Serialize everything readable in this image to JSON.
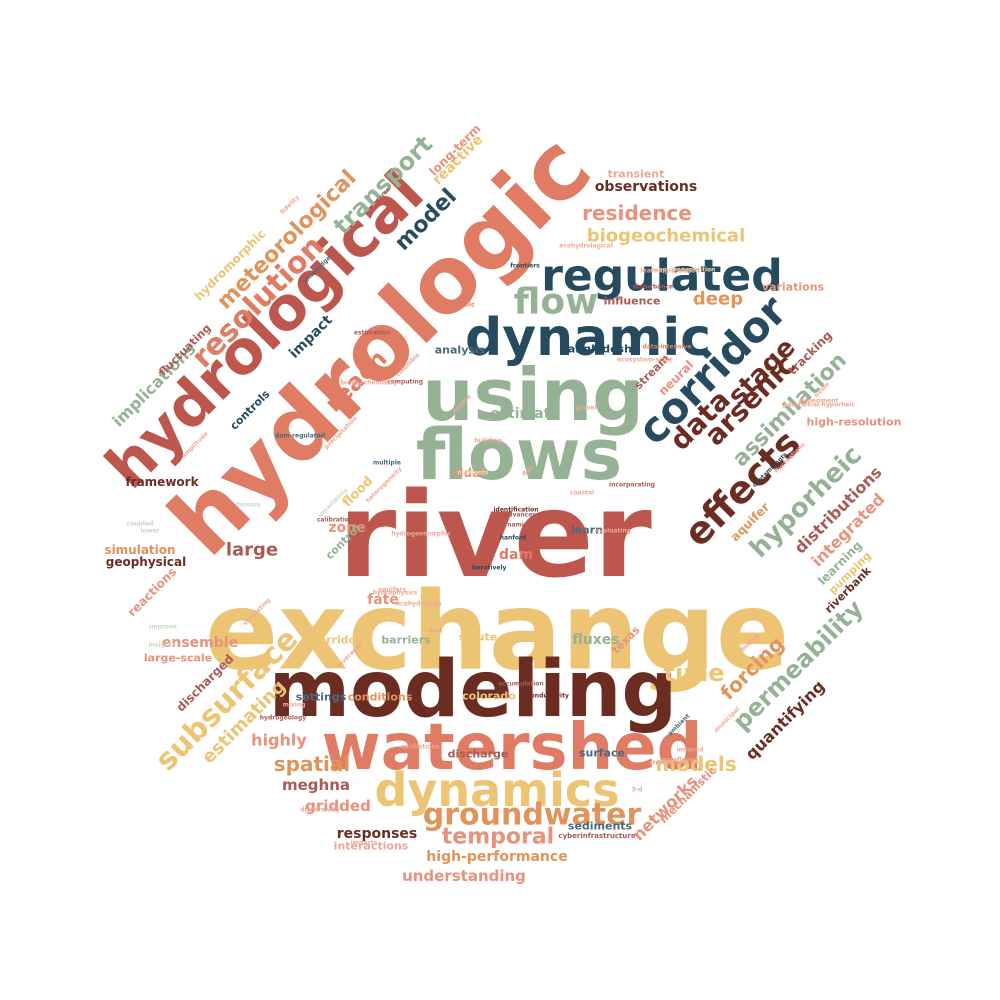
{
  "palette": {
    "dark_red": "#bd574d",
    "coral": "#e07b64",
    "gold": "#ecc473",
    "brown": "#6b2d22",
    "navy": "#264b5e",
    "sage": "#95b394",
    "orange": "#e0945a",
    "salmon": "#e8927c",
    "mauve": "#a85a55",
    "slate": "#4a6a7d",
    "light_coral": "#eda894",
    "light_sage": "#c9d6c6",
    "light_gold": "#f3dfb3"
  },
  "words": [
    {
      "text": "river"
    },
    {
      "text": "exchange"
    },
    {
      "text": "hydrologic"
    },
    {
      "text": "modeling"
    },
    {
      "text": "watershed"
    },
    {
      "text": "flows"
    },
    {
      "text": "using"
    },
    {
      "text": "hydrological"
    },
    {
      "text": "dynamic"
    },
    {
      "text": "dynamics"
    },
    {
      "text": "regulated"
    },
    {
      "text": "corridor"
    },
    {
      "text": "effects"
    },
    {
      "text": "groundwater"
    },
    {
      "text": "flow"
    },
    {
      "text": "subsurface"
    },
    {
      "text": "resolution"
    },
    {
      "text": "data"
    },
    {
      "text": "arsenic"
    },
    {
      "text": "stage"
    },
    {
      "text": "hyporheic"
    },
    {
      "text": "permeability"
    },
    {
      "text": "assimilation"
    },
    {
      "text": "temporal"
    },
    {
      "text": "meteorological"
    },
    {
      "text": "transport"
    },
    {
      "text": "reach"
    },
    {
      "text": "model"
    },
    {
      "text": "time"
    },
    {
      "text": "models"
    },
    {
      "text": "residence"
    },
    {
      "text": "biogeochemical"
    },
    {
      "text": "spatial"
    },
    {
      "text": "forcing"
    },
    {
      "text": "implications"
    },
    {
      "text": "observations"
    },
    {
      "text": "deep"
    },
    {
      "text": "estimating"
    },
    {
      "text": "quantifying"
    },
    {
      "text": "large"
    },
    {
      "text": "distributions"
    },
    {
      "text": "integrated"
    },
    {
      "text": "estimate"
    },
    {
      "text": "highly"
    },
    {
      "text": "networks"
    },
    {
      "text": "hydromorphic"
    },
    {
      "text": "meghna"
    },
    {
      "text": "responses"
    },
    {
      "text": "high-performance"
    },
    {
      "text": "understanding"
    },
    {
      "text": "gridded"
    },
    {
      "text": "fluxes"
    },
    {
      "text": "reactive"
    },
    {
      "text": "impact"
    },
    {
      "text": "long-term"
    },
    {
      "text": "ensemble"
    },
    {
      "text": "fate"
    },
    {
      "text": "zone"
    },
    {
      "text": "tracking"
    },
    {
      "text": "neural"
    },
    {
      "text": "aquifer"
    },
    {
      "text": "learning"
    },
    {
      "text": "discharged"
    },
    {
      "text": "transient"
    },
    {
      "text": "variations"
    },
    {
      "text": "framework"
    },
    {
      "text": "flood"
    },
    {
      "text": "dam"
    },
    {
      "text": "simulation"
    },
    {
      "text": "geophysical"
    },
    {
      "text": "reactions"
    },
    {
      "text": "control"
    },
    {
      "text": "high-resolution"
    },
    {
      "text": "pumping"
    },
    {
      "text": "riverbank"
    },
    {
      "text": "texas"
    },
    {
      "text": "mechanistic"
    },
    {
      "text": "fluctuating"
    },
    {
      "text": "controls"
    },
    {
      "text": "stream"
    },
    {
      "text": "tidal"
    },
    {
      "text": "bangladesh"
    },
    {
      "text": "analysis"
    },
    {
      "text": "influence"
    },
    {
      "text": "large-scale"
    },
    {
      "text": "corridors"
    },
    {
      "text": "barriers"
    },
    {
      "text": "solute"
    },
    {
      "text": "settings"
    },
    {
      "text": "conditions"
    },
    {
      "text": "colorado"
    },
    {
      "text": "discharge"
    },
    {
      "text": "surface"
    },
    {
      "text": "interactions"
    },
    {
      "text": "sediments"
    },
    {
      "text": "learn"
    },
    {
      "text": "cyberinfrastructure"
    },
    {
      "text": "hydrogeology"
    },
    {
      "text": "conductivity"
    },
    {
      "text": "accumulation"
    },
    {
      "text": "computing"
    },
    {
      "text": "estimation"
    },
    {
      "text": "hydraulic"
    },
    {
      "text": "disturbance"
    },
    {
      "text": "frontiers"
    },
    {
      "text": "ecohydrological"
    },
    {
      "text": "data-intensive"
    },
    {
      "text": "ecosystem-scale"
    },
    {
      "text": "dam-regulated"
    },
    {
      "text": "multiple"
    },
    {
      "text": "biogeochemistry"
    },
    {
      "text": "columbia"
    },
    {
      "text": "dynamics"
    },
    {
      "text": "hanford"
    },
    {
      "text": "identification"
    },
    {
      "text": "advances"
    },
    {
      "text": "ambient"
    },
    {
      "text": "3-d"
    },
    {
      "text": "coastal"
    },
    {
      "text": "evaluating"
    },
    {
      "text": "oscillations"
    },
    {
      "text": "impacts"
    },
    {
      "text": "degree"
    },
    {
      "text": "building"
    },
    {
      "text": "experiment"
    },
    {
      "text": "parafluvial-hyporheic"
    },
    {
      "text": "gravel"
    },
    {
      "text": "flux"
    },
    {
      "text": "evapotranspiration"
    },
    {
      "text": "learning-assisted"
    },
    {
      "text": "fidelity"
    },
    {
      "text": "curso"
    },
    {
      "text": "knowledge"
    },
    {
      "text": "nutrients"
    },
    {
      "text": "hydrophysics"
    },
    {
      "text": "hydrogeomorphic"
    },
    {
      "text": "ecohydrology"
    },
    {
      "text": "bed"
    },
    {
      "text": "aquifers"
    },
    {
      "text": "amplitude"
    },
    {
      "text": "domain"
    },
    {
      "text": "coupled"
    },
    {
      "text": "lower"
    },
    {
      "text": "improve"
    },
    {
      "text": "insights"
    },
    {
      "text": "simulating"
    },
    {
      "text": "leverages"
    },
    {
      "text": "parafluvial"
    },
    {
      "text": "streamflow"
    },
    {
      "text": "finding"
    },
    {
      "text": "municipal"
    },
    {
      "text": "incorporating"
    },
    {
      "text": "contaminants"
    },
    {
      "text": "fluctuations"
    },
    {
      "text": "oxide"
    },
    {
      "text": "dispersivity"
    },
    {
      "text": "induced"
    },
    {
      "text": "mixing"
    },
    {
      "text": "precipitation"
    },
    {
      "text": "heterogeneity"
    },
    {
      "text": "uncertainty"
    },
    {
      "text": "calibration"
    },
    {
      "text": "iteratively"
    },
    {
      "text": "extended"
    },
    {
      "text": "reservoir"
    },
    {
      "text": "climate"
    },
    {
      "text": "earth"
    }
  ]
}
